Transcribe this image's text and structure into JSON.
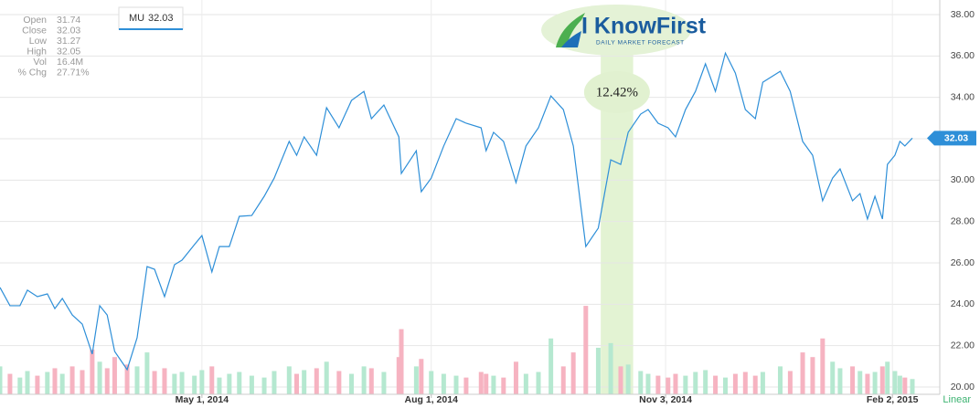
{
  "chart_data": {
    "type": "line",
    "info_panel": [
      {
        "label": "Open",
        "value": 31.74
      },
      {
        "label": "Close",
        "value": 32.03
      },
      {
        "label": "Low",
        "value": 31.27
      },
      {
        "label": "High",
        "value": 32.05
      },
      {
        "label": "Vol",
        "value": "16.4M"
      },
      {
        "label": "% Chg",
        "value": "27.71%"
      }
    ],
    "logo": {
      "title": "I KnowFirst",
      "subtitle": "DAILY MARKET FORECAST"
    },
    "annotation": {
      "label": "12.42%",
      "x_range": [
        "2014-10-08",
        "2014-10-21"
      ],
      "color": "#e3f3d3"
    },
    "scale_mode": "Linear",
    "x": [
      "2014-02-09",
      "2014-02-13",
      "2014-02-17",
      "2014-02-20",
      "2014-02-24",
      "2014-02-28",
      "2014-03-03",
      "2014-03-06",
      "2014-03-10",
      "2014-03-14",
      "2014-03-18",
      "2014-03-21",
      "2014-03-24",
      "2014-03-27",
      "2014-04-01",
      "2014-04-05",
      "2014-04-09",
      "2014-04-12",
      "2014-04-16",
      "2014-04-20",
      "2014-04-23",
      "2014-04-28",
      "2014-05-01",
      "2014-05-05",
      "2014-05-08",
      "2014-05-12",
      "2014-05-16",
      "2014-05-21",
      "2014-05-26",
      "2014-05-30",
      "2014-06-05",
      "2014-06-08",
      "2014-06-11",
      "2014-06-16",
      "2014-06-20",
      "2014-06-25",
      "2014-06-30",
      "2014-07-05",
      "2014-07-08",
      "2014-07-13",
      "2014-07-19",
      "2014-07-20",
      "2014-07-26",
      "2014-07-28",
      "2014-08-01",
      "2014-08-06",
      "2014-08-11",
      "2014-08-15",
      "2014-08-21",
      "2014-08-23",
      "2014-08-26",
      "2014-08-30",
      "2014-09-04",
      "2014-09-08",
      "2014-09-13",
      "2014-09-18",
      "2014-09-23",
      "2014-09-27",
      "2014-10-02",
      "2014-10-07",
      "2014-10-12",
      "2014-10-16",
      "2014-10-19",
      "2014-10-24",
      "2014-10-27",
      "2014-10-31",
      "2014-11-04",
      "2014-11-07",
      "2014-11-11",
      "2014-11-15",
      "2014-11-19",
      "2014-11-23",
      "2014-11-27",
      "2014-12-01",
      "2014-12-05",
      "2014-12-09",
      "2014-12-12",
      "2014-12-19",
      "2014-12-23",
      "2014-12-28",
      "2015-01-01",
      "2015-01-05",
      "2015-01-09",
      "2015-01-12",
      "2015-01-17",
      "2015-01-20",
      "2015-01-23",
      "2015-01-26",
      "2015-01-29",
      "2015-01-31",
      "2015-02-03",
      "2015-02-05",
      "2015-02-07",
      "2015-02-10"
    ],
    "series": [
      {
        "name": "MU",
        "color": "#2e8fd8",
        "values": [
          24.81,
          23.93,
          23.93,
          24.68,
          24.37,
          24.5,
          23.79,
          24.28,
          23.48,
          23.04,
          21.59,
          23.93,
          23.48,
          21.72,
          20.84,
          22.38,
          25.82,
          25.69,
          24.37,
          25.91,
          26.13,
          26.88,
          27.32,
          25.56,
          26.79,
          26.79,
          28.25,
          28.29,
          29.22,
          30.1,
          31.87,
          31.2,
          32.09,
          31.2,
          33.5,
          32.53,
          33.85,
          34.29,
          32.97,
          33.63,
          32.09,
          30.32,
          31.42,
          29.44,
          30.1,
          31.65,
          32.97,
          32.75,
          32.53,
          31.42,
          32.31,
          31.87,
          29.88,
          31.65,
          32.53,
          34.07,
          33.41,
          31.65,
          26.79,
          27.68,
          30.98,
          30.76,
          32.31,
          33.19,
          33.41,
          32.75,
          32.53,
          32.09,
          33.41,
          34.29,
          35.62,
          34.29,
          36.14,
          35.17,
          33.41,
          32.97,
          34.73,
          35.26,
          34.29,
          31.87,
          31.2,
          29.0,
          30.1,
          30.54,
          29.0,
          29.35,
          28.12,
          29.22,
          28.12,
          30.76,
          31.2,
          31.87,
          31.65,
          32.03
        ]
      }
    ],
    "volume": {
      "up_color": "#b5e8d0",
      "down_color": "#f6b3c1",
      "values": [
        30,
        22,
        18,
        25,
        20,
        24,
        28,
        22,
        30,
        26,
        48,
        35,
        28,
        40,
        32,
        30,
        45,
        25,
        28,
        22,
        24,
        20,
        26,
        30,
        18,
        22,
        24,
        20,
        18,
        25,
        30,
        22,
        26,
        28,
        35,
        25,
        22,
        30,
        28,
        24,
        40,
        70,
        30,
        38,
        25,
        22,
        20,
        18,
        24,
        22,
        20,
        18,
        35,
        22,
        24,
        60,
        30,
        45,
        95,
        50,
        55,
        30,
        32,
        25,
        22,
        20,
        18,
        22,
        20,
        24,
        26,
        20,
        18,
        22,
        24,
        20,
        24,
        30,
        25,
        45,
        40,
        60,
        35,
        28,
        30,
        25,
        22,
        24,
        30,
        35,
        25,
        20,
        18,
        16.4
      ]
    },
    "xlim": [
      "2014-02-09",
      "2015-02-21"
    ],
    "xticks": [
      {
        "value": "2014-05-01",
        "label": "May 1, 2014"
      },
      {
        "value": "2014-08-01",
        "label": "Aug 1, 2014"
      },
      {
        "value": "2014-11-03",
        "label": "Nov 3, 2014"
      },
      {
        "value": "2015-02-02",
        "label": "Feb 2, 2015"
      }
    ],
    "ylim": [
      20,
      38
    ],
    "yticks": [
      {
        "value": 20,
        "label": "20.00"
      },
      {
        "value": 22,
        "label": "22.00"
      },
      {
        "value": 24,
        "label": "24.00"
      },
      {
        "value": 26,
        "label": "26.00"
      },
      {
        "value": 28,
        "label": "28.00"
      },
      {
        "value": 30,
        "label": "30.00"
      },
      {
        "value": 32,
        "label": "32.00"
      },
      {
        "value": 34,
        "label": "34.00"
      },
      {
        "value": 36,
        "label": "36.00"
      },
      {
        "value": 38,
        "label": "38.00"
      }
    ],
    "y2lim": [
      0,
      400
    ],
    "grid": true
  }
}
